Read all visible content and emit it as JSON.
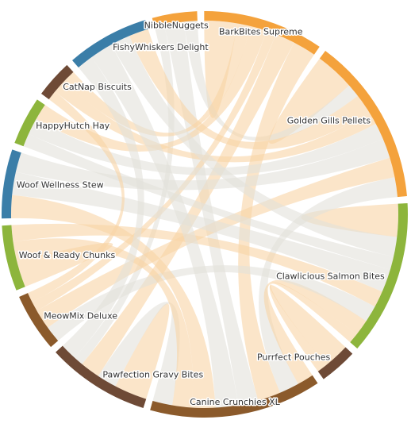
{
  "nodes": [
    {
      "label": "NibbleNuggets",
      "color": "#f4a23c"
    },
    {
      "label": "BarkBites Supreme",
      "color": "#f4a23c"
    },
    {
      "label": "Golden Gills Pellets",
      "color": "#f4a23c"
    },
    {
      "label": "Clawlicious Salmon Bites",
      "color": "#8db53c"
    },
    {
      "label": "Purrfect Pouches",
      "color": "#6e4a36"
    },
    {
      "label": "Canine Crunchies XL",
      "color": "#8b5a2b"
    },
    {
      "label": "Pawfection Gravy Bites",
      "color": "#6e4a36"
    },
    {
      "label": "MeowMix Deluxe",
      "color": "#8b5a2b"
    },
    {
      "label": "Woof & Ready Chunks",
      "color": "#8db53c"
    },
    {
      "label": "Woof Wellness Stew",
      "color": "#3b7ea8"
    },
    {
      "label": "HappyHutch Hay",
      "color": "#8db53c"
    },
    {
      "label": "CatNap Biscuits",
      "color": "#6e4a36"
    },
    {
      "label": "FishyWhiskers Delight",
      "color": "#3b7ea8"
    }
  ],
  "links": [
    {
      "source": 2,
      "target": 2,
      "value": 6,
      "color": "#f8d3a5"
    },
    {
      "source": 1,
      "target": 1,
      "value": 5,
      "color": "#f8d3a5"
    },
    {
      "source": 3,
      "target": 3,
      "value": 5,
      "color": "#f8d3a5"
    },
    {
      "source": 4,
      "target": 4,
      "value": 4,
      "color": "#f8d3a5"
    },
    {
      "source": 8,
      "target": 8,
      "value": 4,
      "color": "#f8d3a5"
    },
    {
      "source": 6,
      "target": 6,
      "value": 5,
      "color": "#f8d3a5"
    },
    {
      "source": 0,
      "target": 5,
      "value": 6,
      "color": "#e3e1db"
    },
    {
      "source": 0,
      "target": 2,
      "value": 4,
      "color": "#e3e1db"
    },
    {
      "source": 0,
      "target": 6,
      "value": 3,
      "color": "#e3e1db"
    },
    {
      "source": 1,
      "target": 5,
      "value": 7,
      "color": "#f8d3a5"
    },
    {
      "source": 1,
      "target": 6,
      "value": 6,
      "color": "#f8d3a5"
    },
    {
      "source": 1,
      "target": 10,
      "value": 5,
      "color": "#f8d3a5"
    },
    {
      "source": 1,
      "target": 11,
      "value": 4,
      "color": "#f8d3a5"
    },
    {
      "source": 1,
      "target": 7,
      "value": 3,
      "color": "#f8d3a5"
    },
    {
      "source": 2,
      "target": 9,
      "value": 6,
      "color": "#e3e1db"
    },
    {
      "source": 2,
      "target": 10,
      "value": 5,
      "color": "#e3e1db"
    },
    {
      "source": 2,
      "target": 12,
      "value": 6,
      "color": "#f8d3a5"
    },
    {
      "source": 2,
      "target": 11,
      "value": 4,
      "color": "#f8d3a5"
    },
    {
      "source": 2,
      "target": 5,
      "value": 6,
      "color": "#e3e1db"
    },
    {
      "source": 2,
      "target": 7,
      "value": 6,
      "color": "#f8d3a5"
    },
    {
      "source": 3,
      "target": 9,
      "value": 7,
      "color": "#e3e1db"
    },
    {
      "source": 3,
      "target": 8,
      "value": 5,
      "color": "#f8d3a5"
    },
    {
      "source": 3,
      "target": 5,
      "value": 5,
      "color": "#f8d3a5"
    },
    {
      "source": 3,
      "target": 12,
      "value": 6,
      "color": "#e3e1db"
    },
    {
      "source": 3,
      "target": 7,
      "value": 5,
      "color": "#e3e1db"
    },
    {
      "source": 3,
      "target": 4,
      "value": 3,
      "color": "#f8d3a5"
    },
    {
      "source": 3,
      "target": 10,
      "value": 4,
      "color": "#e3e1db"
    },
    {
      "source": 5,
      "target": 12,
      "value": 7,
      "color": "#e3e1db"
    },
    {
      "source": 5,
      "target": 9,
      "value": 7,
      "color": "#f8d3a5"
    },
    {
      "source": 5,
      "target": 6,
      "value": 6,
      "color": "#e3e1db"
    },
    {
      "source": 5,
      "target": 8,
      "value": 6,
      "color": "#f8d3a5"
    },
    {
      "source": 6,
      "target": 12,
      "value": 5,
      "color": "#e3e1db"
    },
    {
      "source": 11,
      "target": 7,
      "value": 3,
      "color": "#f8d3a5"
    }
  ]
}
